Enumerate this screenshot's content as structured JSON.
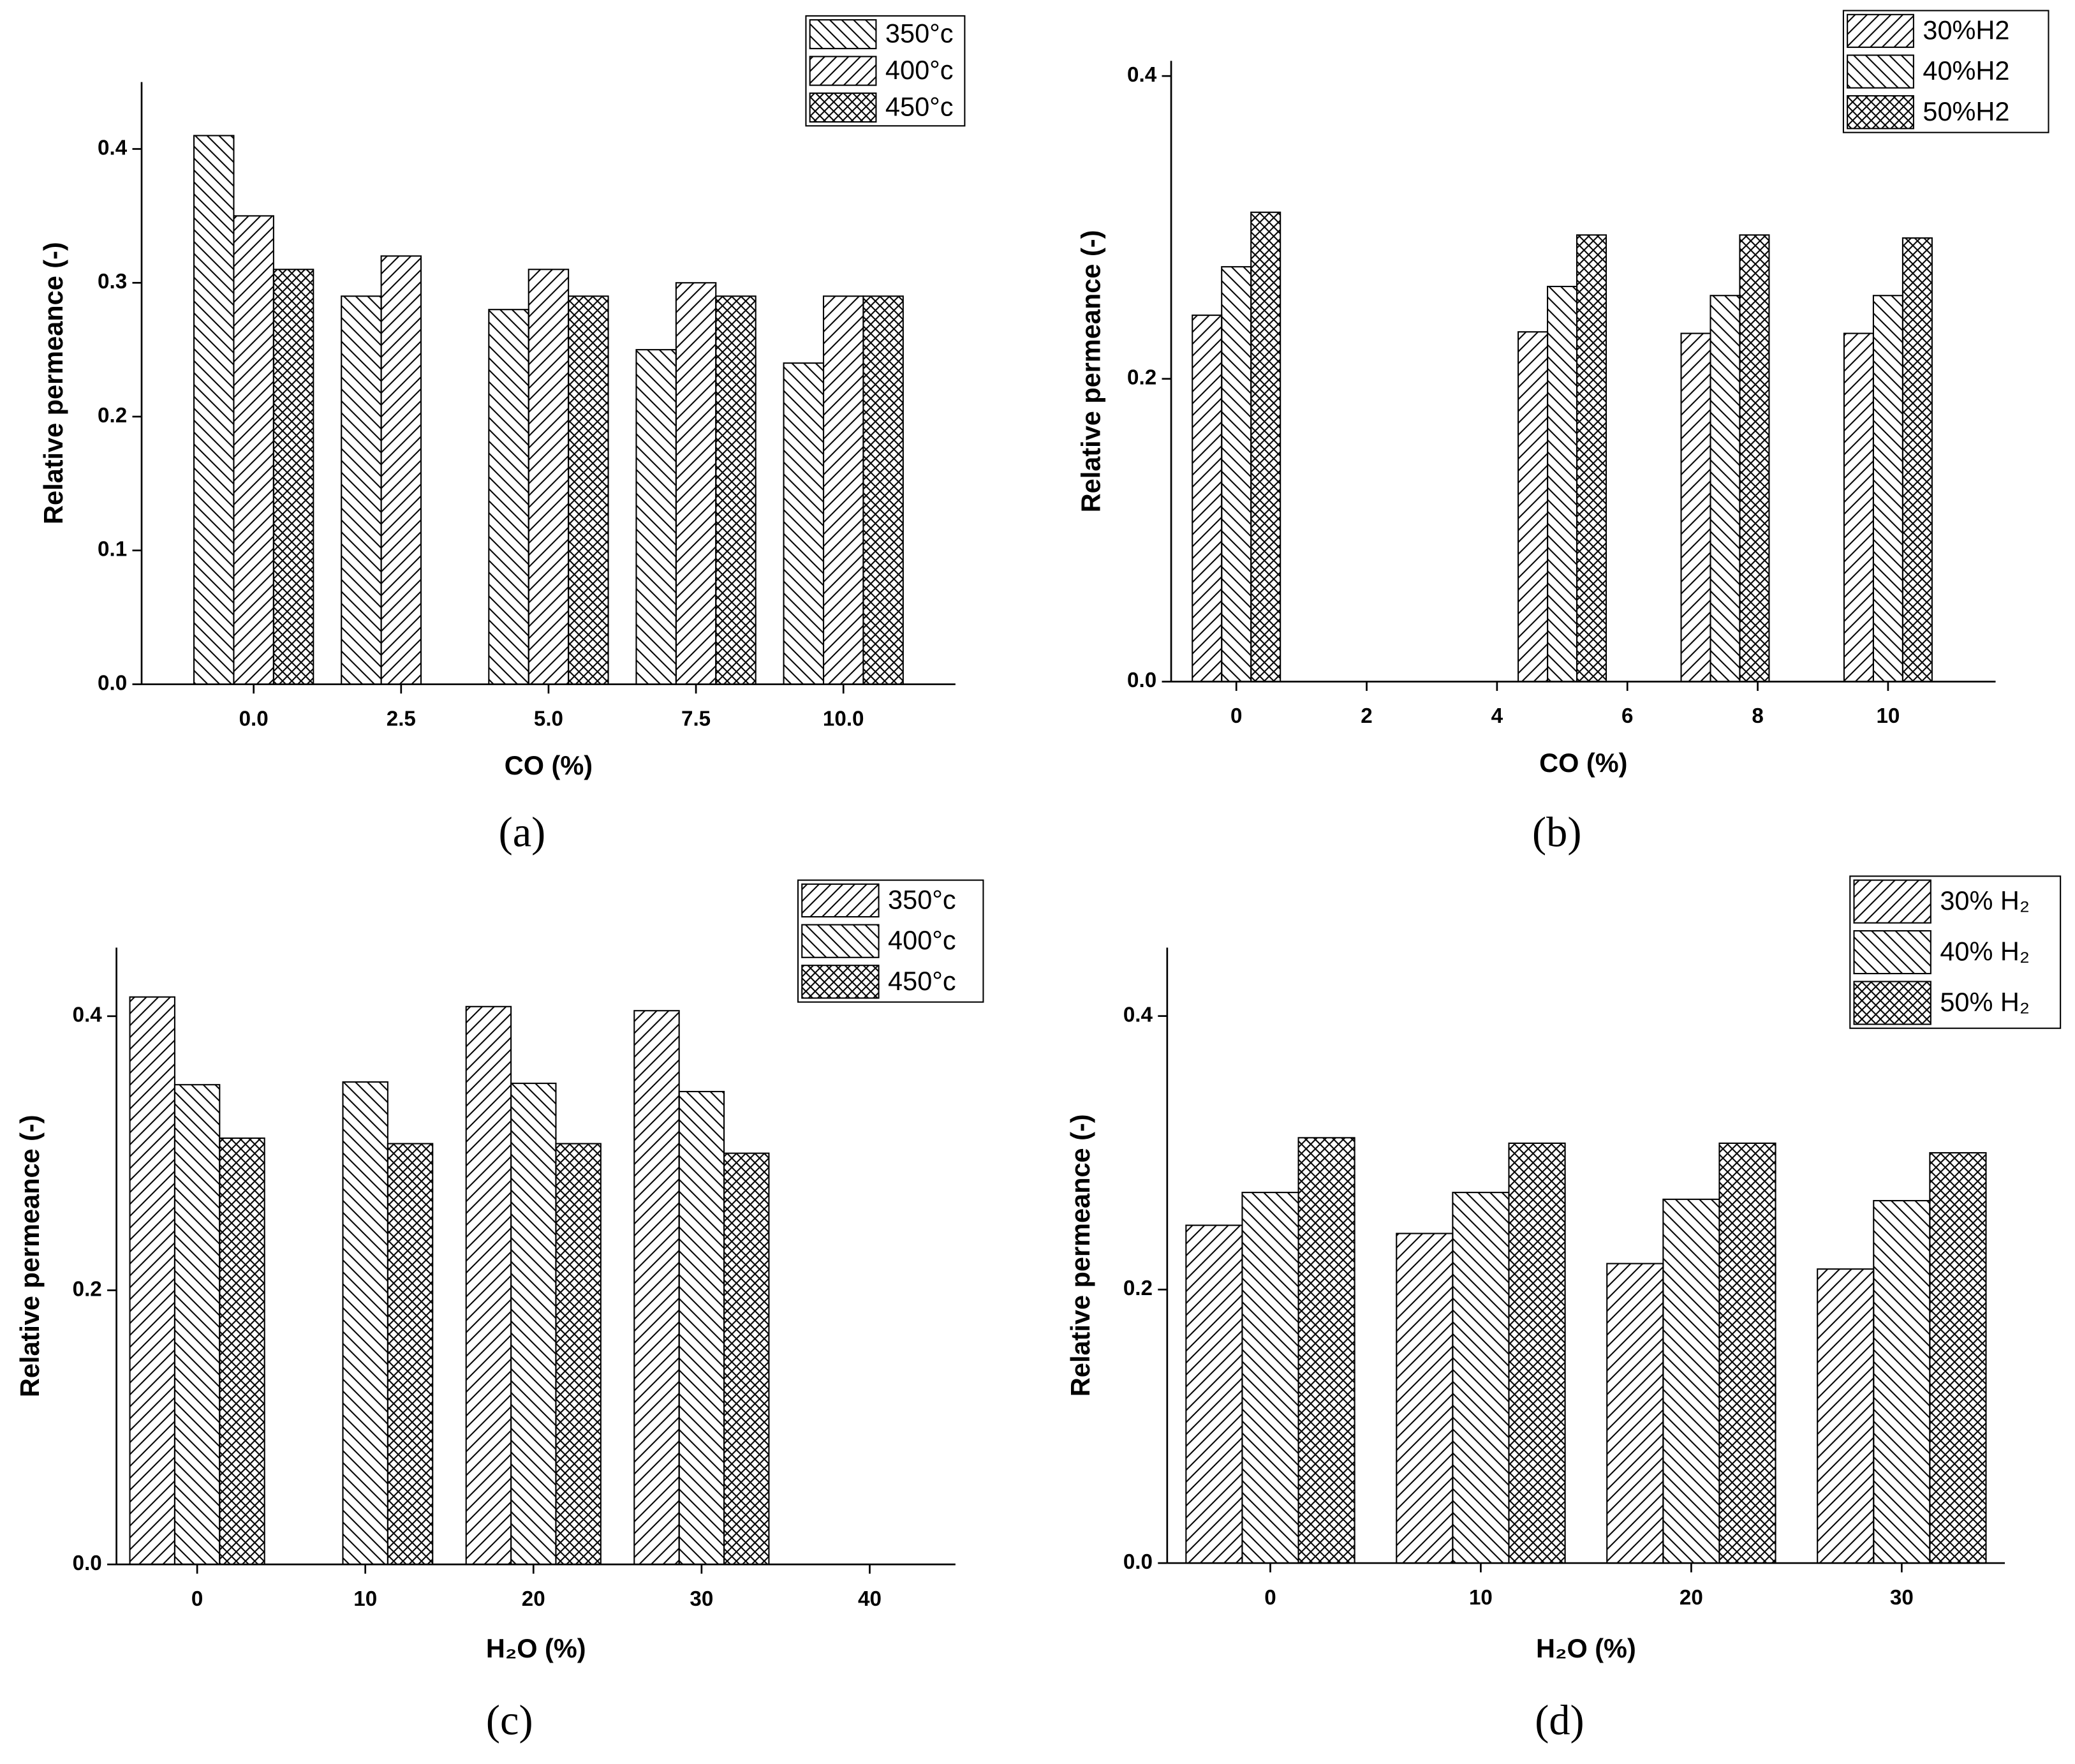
{
  "chart_data": [
    {
      "type": "bar",
      "label": "(a)",
      "x_label": "CO (%)",
      "y_label": "Relative permeance (-)",
      "categories": [
        "0.0",
        "2.5",
        "5.0",
        "7.5",
        "10.0"
      ],
      "series": [
        {
          "name": "350°c",
          "color": "#000000",
          "hatch": "\\",
          "values": [
            0.41,
            0.29,
            0.28,
            0.25,
            0.24
          ]
        },
        {
          "name": "400°c",
          "color": "#000000",
          "hatch": "/",
          "values": [
            0.35,
            0.32,
            0.31,
            0.3,
            0.29
          ]
        },
        {
          "name": "450°c",
          "color": "#000000",
          "hatch": "x",
          "values": [
            0.31,
            null,
            0.29,
            0.29,
            0.29
          ]
        }
      ],
      "ylim": [
        0,
        0.45
      ],
      "yticks": [
        {
          "value": 0,
          "label": "0.0"
        },
        0.1,
        0.2,
        0.3,
        0.4
      ],
      "legend": "top-right"
    },
    {
      "type": "bar",
      "label": "(b)",
      "x_label": "CO (%)",
      "y_label": "Relative permeance (-)",
      "x": [
        0,
        5,
        7.5,
        10
      ],
      "series": [
        {
          "name": "30%H2",
          "color": "#000000",
          "hatch": "/",
          "values": [
            0.242,
            0.231,
            0.23,
            0.23
          ]
        },
        {
          "name": "40%H2",
          "color": "#000000",
          "hatch": "\\",
          "values": [
            0.274,
            0.261,
            0.255,
            0.255
          ]
        },
        {
          "name": "50%H2",
          "color": "#000000",
          "hatch": "x",
          "values": [
            0.31,
            0.295,
            0.295,
            0.293
          ]
        }
      ],
      "xlim": [
        -1,
        11.65
      ],
      "xticks": [
        0,
        2,
        4,
        6,
        8,
        10
      ],
      "ylim": [
        0,
        0.41
      ],
      "yticks": [
        {
          "value": 0,
          "label": "0.0"
        },
        0.2,
        0.4
      ],
      "legend": "top-right"
    },
    {
      "type": "bar",
      "label": "(c)",
      "x_label": "H₂O (%)",
      "y_label": "Relative permeance (-)",
      "x": [
        0,
        10,
        20,
        30
      ],
      "series": [
        {
          "name": "350°c",
          "color": "#000000",
          "hatch": "/",
          "values": [
            0.414,
            null,
            0.407,
            0.404
          ]
        },
        {
          "name": "400°c",
          "color": "#000000",
          "hatch": "\\",
          "values": [
            0.35,
            0.352,
            0.351,
            0.345
          ]
        },
        {
          "name": "450°c",
          "color": "#000000",
          "hatch": "x",
          "values": [
            0.311,
            0.307,
            0.307,
            0.3
          ]
        }
      ],
      "xlim": [
        -4.8,
        45.1
      ],
      "xticks": [
        0,
        10,
        20,
        30,
        40
      ],
      "ylim": [
        0,
        0.45
      ],
      "yticks": [
        {
          "value": 0,
          "label": "0.0"
        },
        0.2,
        0.4
      ],
      "legend": "top-right"
    },
    {
      "type": "bar",
      "label": "(d)",
      "x_label": "H₂O (%)",
      "y_label": "Relative permeance (-)",
      "categories": [
        "0",
        "10",
        "20",
        "30"
      ],
      "series": [
        {
          "name": "30% H₂",
          "color": "#000000",
          "hatch": "/",
          "values": [
            0.247,
            0.241,
            0.219,
            0.215
          ]
        },
        {
          "name": "40% H₂",
          "color": "#000000",
          "hatch": "\\",
          "values": [
            0.271,
            0.271,
            0.266,
            0.265
          ]
        },
        {
          "name": "50% H₂",
          "color": "#000000",
          "hatch": "x",
          "values": [
            0.311,
            0.307,
            0.307,
            0.3
          ]
        }
      ],
      "ylim": [
        0,
        0.45
      ],
      "yticks": [
        {
          "value": 0,
          "label": "0.0"
        },
        0.2,
        0.4
      ],
      "legend": "top-right"
    }
  ]
}
